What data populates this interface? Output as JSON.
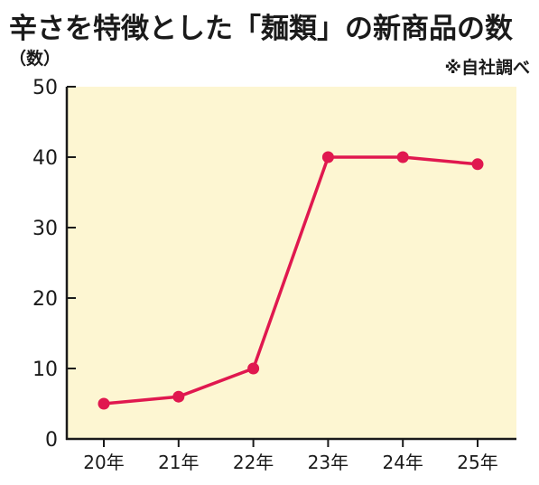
{
  "chart_data": {
    "type": "line",
    "title": "辛さを特徴とした「麺類」の新商品の数",
    "unit_label": "（数）",
    "source": "※自社調べ",
    "categories": [
      "20年",
      "21年",
      "22年",
      "23年",
      "24年",
      "25年"
    ],
    "series": [
      {
        "values": [
          5,
          6,
          10,
          40,
          40,
          39
        ]
      }
    ],
    "ylim": [
      0,
      50
    ],
    "yticks": [
      0,
      10,
      20,
      30,
      40,
      50
    ],
    "grid": false,
    "colors": {
      "line": "#e0184f",
      "plot_bg": "#fdf6d2",
      "axis": "#1a1a1a"
    }
  }
}
